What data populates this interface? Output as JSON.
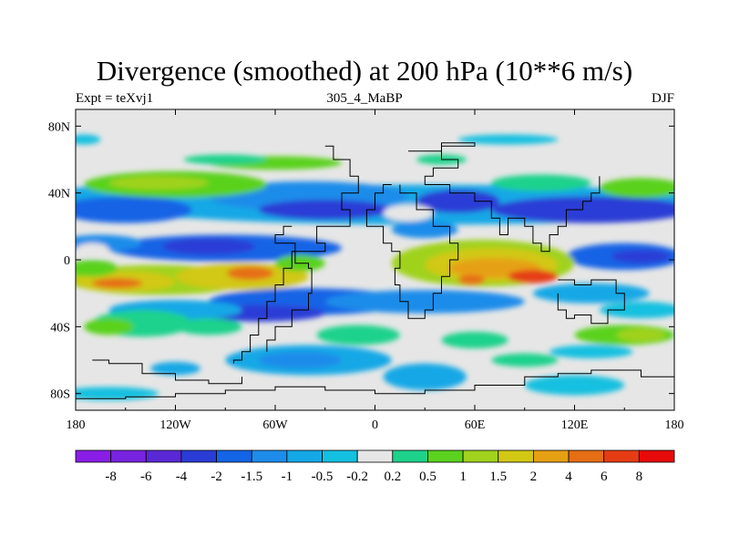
{
  "chart_data": {
    "type": "heatmap",
    "title": "Divergence (smoothed) at 200 hPa (10**6 m/s)",
    "subtitle_left": "Expt = teXvj1",
    "subtitle_center": "305_4_MaBP",
    "subtitle_right": "DJF",
    "x_ticks": [
      "180",
      "120W",
      "60W",
      "0",
      "60E",
      "120E",
      "180"
    ],
    "x_tick_values": [
      -180,
      -120,
      -60,
      0,
      60,
      120,
      180
    ],
    "y_ticks": [
      "80N",
      "40N",
      "0",
      "40S",
      "80S"
    ],
    "y_tick_values": [
      80,
      40,
      0,
      -40,
      -80
    ],
    "xlim": [
      -180,
      180
    ],
    "ylim": [
      -90,
      90
    ],
    "colorbar": {
      "levels": [
        "-8",
        "-6",
        "-4",
        "-2",
        "-1.5",
        "-1",
        "-0.5",
        "-0.2",
        "0.2",
        "0.5",
        "1",
        "1.5",
        "2",
        "4",
        "6",
        "8"
      ],
      "colors": [
        "#8a1ee6",
        "#7823e0",
        "#5a28d6",
        "#2a3cd6",
        "#1464e6",
        "#1e8cea",
        "#14a8e6",
        "#14c0e0",
        "#e6e6e6",
        "#1ed28c",
        "#5ad21e",
        "#a0d21e",
        "#d2c814",
        "#e6a014",
        "#e66e14",
        "#e63c14",
        "#e60a0a"
      ]
    },
    "features": [
      {
        "region": "northern midlatitude band",
        "lon_range": [
          -180,
          180
        ],
        "lat_range": [
          15,
          45
        ],
        "value_range": [
          -4,
          -1
        ]
      },
      {
        "region": "north Atlantic / Eurasia jet band",
        "lon_range": [
          -180,
          180
        ],
        "lat_range": [
          35,
          55
        ],
        "value_range": [
          0.5,
          1.5
        ]
      },
      {
        "region": "Africa / Indian Ocean divergence",
        "lon_range": [
          20,
          110
        ],
        "lat_range": [
          -20,
          10
        ],
        "value_range": [
          2,
          6
        ]
      },
      {
        "region": "eastern Pacific / South America divergence",
        "lon_range": [
          -180,
          -30
        ],
        "lat_range": [
          -25,
          -5
        ],
        "value_range": [
          1,
          4
        ]
      },
      {
        "region": "southern subtropical convergence band",
        "lon_range": [
          -180,
          180
        ],
        "lat_range": [
          -40,
          -25
        ],
        "value_range": [
          -4,
          -0.5
        ]
      },
      {
        "region": "equatorial central Pacific convergence",
        "lon_range": [
          -120,
          -60
        ],
        "lat_range": [
          0,
          15
        ],
        "value_range": [
          -4,
          -2
        ]
      },
      {
        "region": "equatorial west Pacific convergence",
        "lon_range": [
          120,
          180
        ],
        "lat_range": [
          -5,
          10
        ],
        "value_range": [
          -4,
          -1
        ]
      }
    ]
  }
}
